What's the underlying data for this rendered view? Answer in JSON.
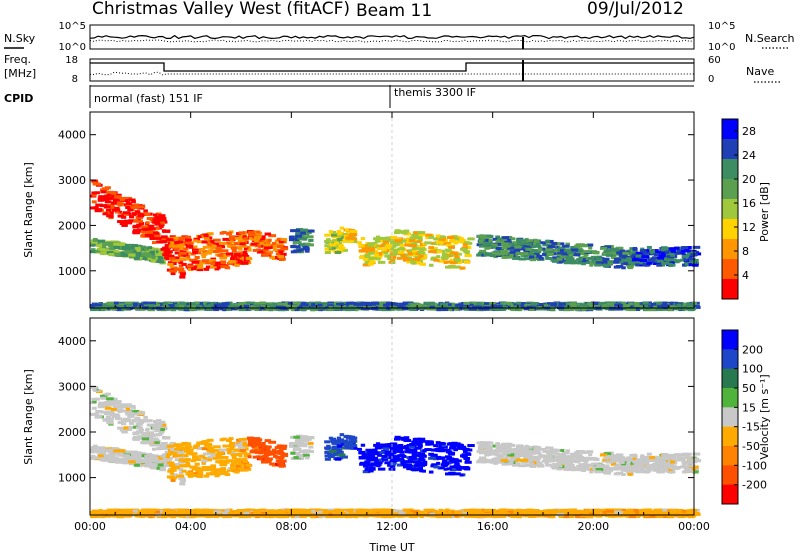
{
  "header": {
    "station": "Christmas Valley West (fitACF)",
    "beam": "Beam 11",
    "date": "09/Jul/2012"
  },
  "strips": {
    "nsky_label": "N.Sky",
    "nsky_ticks": [
      "10^5",
      "10^0"
    ],
    "nsearch_label": "N.Search",
    "nsearch_ticks": [
      "10^5",
      "10^0"
    ],
    "freq_label": "Freq.",
    "freq_unit": "[MHz]",
    "freq_ticks": [
      "18",
      "8"
    ],
    "nave_label": "Nave",
    "nave_ticks": [
      "60",
      "0"
    ],
    "cpid_label": "CPID",
    "cpid_modes": [
      "normal (fast) 151 IF",
      "themis 3300 IF"
    ]
  },
  "colors": {
    "power": [
      "#0000ff",
      "#1f3fb4",
      "#3c8c64",
      "#5aa050",
      "#a0c83c",
      "#ffd200",
      "#ff9600",
      "#ff5a00",
      "#ff0000"
    ],
    "velocity": [
      "#0000ff",
      "#1e46c8",
      "#287850",
      "#50b43c",
      "#c8c8c8",
      "#ffaa00",
      "#ff8200",
      "#ff5000",
      "#ff0000"
    ]
  },
  "chart_data": [
    {
      "type": "heatmap",
      "name": "Power",
      "ylabel": "Slant Range [km]",
      "xlabel": "Time UT",
      "x_ticks": [
        "00:00",
        "04:00",
        "08:00",
        "12:00",
        "16:00",
        "20:00",
        "00:00"
      ],
      "y_ticks": [
        "1000",
        "2000",
        "3000",
        "4000"
      ],
      "xlim_hours": [
        0,
        24
      ],
      "ylim_km": [
        180,
        4500
      ],
      "colorbar_label": "Power [dB]",
      "colorbar_ticks": [
        "28",
        "24",
        "20",
        "16",
        "12",
        "8",
        "4"
      ],
      "colorbar_range": [
        0,
        30
      ]
    },
    {
      "type": "heatmap",
      "name": "Velocity",
      "ylabel": "Slant Range [km]",
      "xlabel": "Time UT",
      "x_ticks": [
        "00:00",
        "04:00",
        "08:00",
        "12:00",
        "16:00",
        "20:00",
        "00:00"
      ],
      "y_ticks": [
        "1000",
        "2000",
        "3000",
        "4000"
      ],
      "xlim_hours": [
        0,
        24
      ],
      "ylim_km": [
        180,
        4500
      ],
      "colorbar_label": "Velocity [m s⁻¹]",
      "colorbar_ticks": [
        "200",
        "100",
        "50",
        "15",
        "-15",
        "-50",
        "-100",
        "-200"
      ],
      "colorbar_range": [
        -250,
        250
      ]
    }
  ]
}
